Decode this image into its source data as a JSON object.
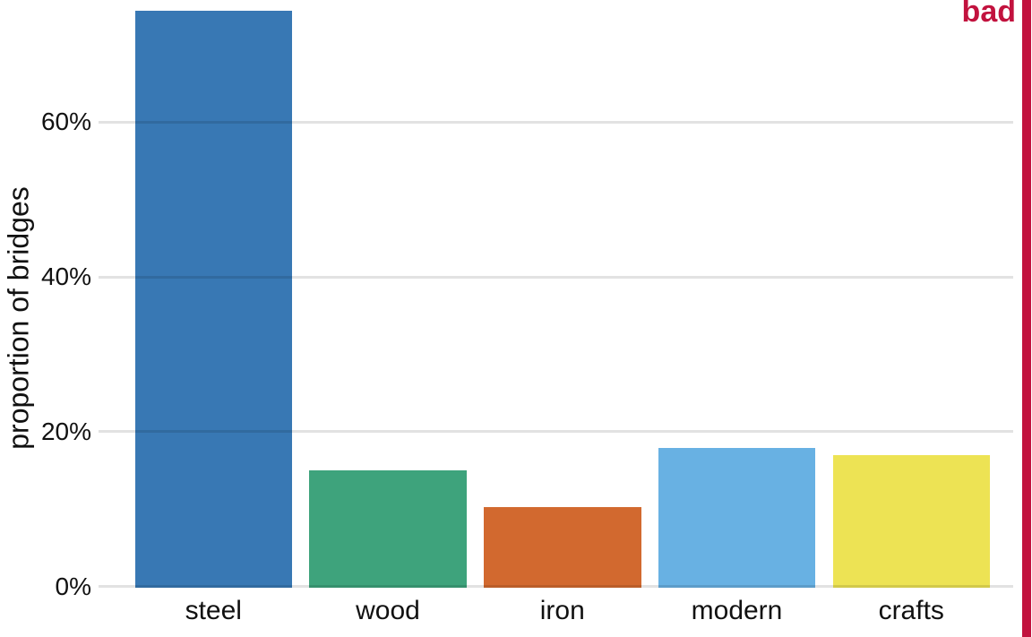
{
  "stamp": {
    "label": "bad",
    "color": "#c2123e"
  },
  "chart_data": {
    "type": "bar",
    "title": "",
    "ylabel": "proportion of bridges",
    "xlabel": "",
    "categories": [
      "steel",
      "wood",
      "iron",
      "modern",
      "crafts"
    ],
    "values": [
      74.4,
      15.0,
      10.3,
      17.9,
      17.0
    ],
    "value_unit": "percent",
    "bar_colors": [
      "#3878b4",
      "#3ea37c",
      "#d2692f",
      "#68b1e3",
      "#ede354"
    ],
    "yticks": [
      {
        "value": 0,
        "label": "0%"
      },
      {
        "value": 20,
        "label": "20%"
      },
      {
        "value": 40,
        "label": "40%"
      },
      {
        "value": 60,
        "label": "60%"
      }
    ],
    "ylim": [
      0,
      75.9
    ],
    "grid": "horizontal",
    "gridline_color": "#e2e2e2",
    "text_color": "#111111",
    "legend": "none"
  }
}
